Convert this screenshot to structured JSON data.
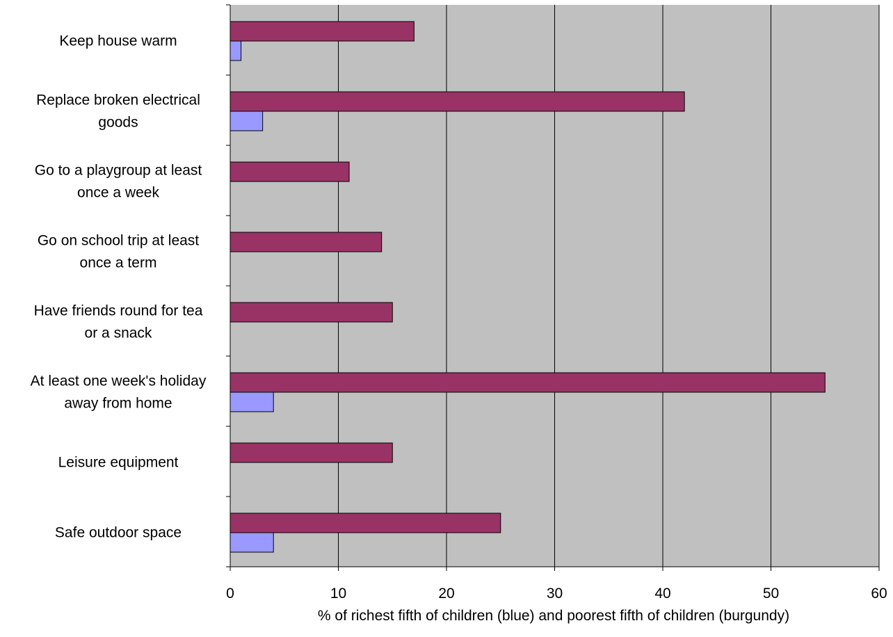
{
  "chart_data": {
    "type": "bar",
    "orientation": "horizontal",
    "categories": [
      [
        "Keep house warm"
      ],
      [
        "Replace broken electrical",
        "goods"
      ],
      [
        "Go to a playgroup at least",
        "once a week"
      ],
      [
        "Go on school trip at least",
        "once a term"
      ],
      [
        "Have friends round for tea",
        "or a snack"
      ],
      [
        "At least one week's holiday",
        "away from home"
      ],
      [
        "Leisure equipment"
      ],
      [
        "Safe outdoor space"
      ]
    ],
    "series": [
      {
        "key": "poorest",
        "color": "#993366",
        "values": [
          17,
          42,
          11,
          14,
          15,
          55,
          15,
          25
        ]
      },
      {
        "key": "richest",
        "color": "#9999ff",
        "values": [
          1,
          3,
          0,
          0,
          0,
          4,
          0,
          4
        ]
      }
    ],
    "xlabel": "% of richest fifth of children (blue) and poorest fifth of children (burgundy)",
    "xlim": [
      0,
      60
    ],
    "xticks": [
      0,
      10,
      20,
      30,
      40,
      50,
      60
    ],
    "plot_background": "#c0c0c0",
    "grid": true
  }
}
